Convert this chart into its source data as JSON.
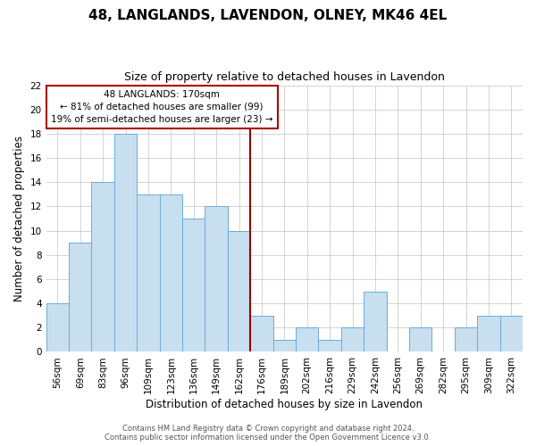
{
  "title": "48, LANGLANDS, LAVENDON, OLNEY, MK46 4EL",
  "subtitle": "Size of property relative to detached houses in Lavendon",
  "xlabel": "Distribution of detached houses by size in Lavendon",
  "ylabel": "Number of detached properties",
  "bar_labels": [
    "56sqm",
    "69sqm",
    "83sqm",
    "96sqm",
    "109sqm",
    "123sqm",
    "136sqm",
    "149sqm",
    "162sqm",
    "176sqm",
    "189sqm",
    "202sqm",
    "216sqm",
    "229sqm",
    "242sqm",
    "256sqm",
    "269sqm",
    "282sqm",
    "295sqm",
    "309sqm",
    "322sqm"
  ],
  "bar_values": [
    4,
    9,
    14,
    18,
    13,
    13,
    11,
    12,
    10,
    3,
    1,
    2,
    1,
    2,
    5,
    0,
    2,
    0,
    2,
    3,
    3
  ],
  "bar_color": "#c8dff0",
  "bar_edge_color": "#6aabdb",
  "property_line_label": "48 LANGLANDS: 170sqm",
  "annotation_smaller": "← 81% of detached houses are smaller (99)",
  "annotation_larger": "19% of semi-detached houses are larger (23) →",
  "annotation_box_color": "#ffffff",
  "annotation_box_edge": "#aa0000",
  "ylim": [
    0,
    22
  ],
  "yticks": [
    0,
    2,
    4,
    6,
    8,
    10,
    12,
    14,
    16,
    18,
    20,
    22
  ],
  "grid_color": "#cccccc",
  "footer_line1": "Contains HM Land Registry data © Crown copyright and database right 2024.",
  "footer_line2": "Contains public sector information licensed under the Open Government Licence v3.0.",
  "title_fontsize": 11,
  "subtitle_fontsize": 9,
  "axis_label_fontsize": 8.5,
  "tick_fontsize": 7.5,
  "footer_fontsize": 6
}
